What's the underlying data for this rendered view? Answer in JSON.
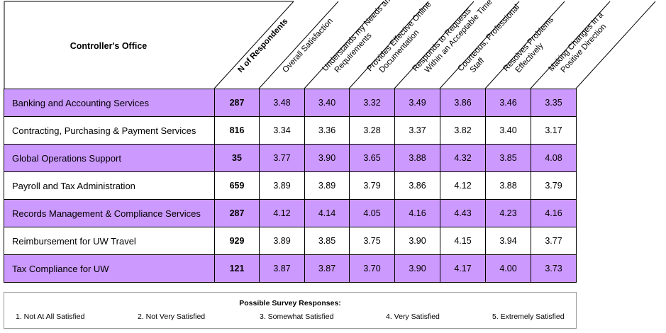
{
  "office_title": "Controller's Office",
  "headers": {
    "respondents": "N of Respondents",
    "columns": [
      [
        "Overall Satisfaction"
      ],
      [
        "Understands my Needs and",
        "Requirements"
      ],
      [
        "Provides Effective Online",
        "Documentation"
      ],
      [
        "Responds to Requests",
        "Within an Acceptable Time"
      ],
      [
        "Courteous, Professional",
        "Staff"
      ],
      [
        "Resolves Problems",
        "Effectively"
      ],
      [
        "Making Changes in a",
        "Positive Direction"
      ]
    ]
  },
  "rows": [
    {
      "service": "Banking and Accounting Services",
      "n": "287",
      "scores": [
        "3.48",
        "3.40",
        "3.32",
        "3.49",
        "3.86",
        "3.46",
        "3.35"
      ]
    },
    {
      "service": "Contracting, Purchasing & Payment Services",
      "n": "816",
      "scores": [
        "3.34",
        "3.36",
        "3.28",
        "3.37",
        "3.82",
        "3.40",
        "3.17"
      ]
    },
    {
      "service": "Global Operations Support",
      "n": "35",
      "scores": [
        "3.77",
        "3.90",
        "3.65",
        "3.88",
        "4.32",
        "3.85",
        "4.08"
      ]
    },
    {
      "service": "Payroll and Tax Administration",
      "n": "659",
      "scores": [
        "3.89",
        "3.89",
        "3.79",
        "3.86",
        "4.12",
        "3.88",
        "3.79"
      ]
    },
    {
      "service": "Records Management & Compliance Services",
      "n": "287",
      "scores": [
        "4.12",
        "4.14",
        "4.05",
        "4.16",
        "4.43",
        "4.23",
        "4.16"
      ]
    },
    {
      "service": "Reimbursement for UW Travel",
      "n": "929",
      "scores": [
        "3.89",
        "3.85",
        "3.75",
        "3.90",
        "4.15",
        "3.94",
        "3.77"
      ]
    },
    {
      "service": "Tax Compliance for UW",
      "n": "121",
      "scores": [
        "3.87",
        "3.87",
        "3.70",
        "3.90",
        "4.17",
        "4.00",
        "3.73"
      ]
    }
  ],
  "legend": {
    "title": "Possible Survey Responses:",
    "items": [
      "1. Not At All Satisfied",
      "2. Not Very Satisfied",
      "3. Somewhat Satisfied",
      "4. Very Satisfied",
      "5. Extremely Satisfied"
    ]
  },
  "colors": {
    "highlight_row": "#cc99ff",
    "border": "#000000"
  }
}
